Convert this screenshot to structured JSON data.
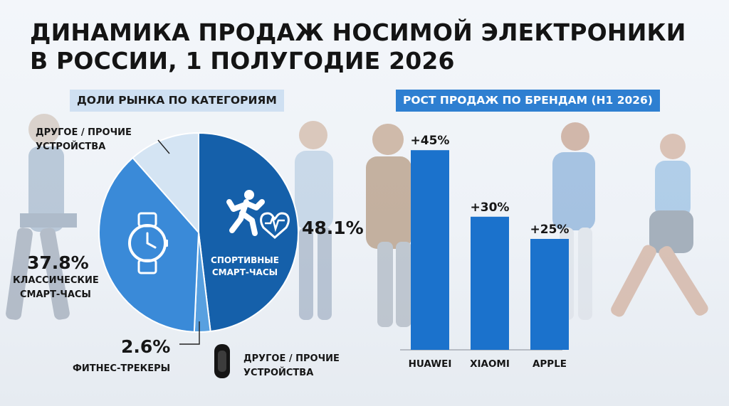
{
  "title": "ДИНАМИКА ПРОДАЖ НОСИМОЙ ЭЛЕКТРОНИКИ В РОССИИ, 1 ПОЛУГОДИЕ 2026",
  "colors": {
    "sport": "#1560aa",
    "classic": "#3a8ad8",
    "fitness": "#58a0e0",
    "other": "#d4e4f3",
    "bar": "#1b72cc"
  },
  "chart_data": [
    {
      "type": "pie",
      "title": "ДОЛИ РЫНКА ПО КАТЕГОРИЯМ",
      "slices": [
        {
          "key": "sport",
          "value": 48.1,
          "value_label": "48.1%",
          "name_lines": [
            "СПОРТИВНЫЕ",
            "СМАРТ-ЧАСЫ"
          ],
          "icon": "running-person-heartbeat-icon"
        },
        {
          "key": "fitness",
          "value": 2.6,
          "value_label": "2.6%",
          "name_lines": [
            "ФИТНЕС-ТРЕКЕРЫ"
          ],
          "icon": "fitness-band-icon"
        },
        {
          "key": "classic",
          "value": 37.8,
          "value_label": "37.8%",
          "name_lines": [
            "КЛАССИЧЕСКИЕ",
            "СМАРТ-ЧАСЫ"
          ],
          "icon": "wristwatch-icon"
        },
        {
          "key": "other",
          "value": 11.5,
          "name_lines": [
            "ДРУГОЕ / ПРОЧИЕ",
            "УСТРОЙСТВА"
          ]
        }
      ],
      "extra_label_lines": [
        "ДРУГОЕ / ПРОЧИЕ",
        "УСТРОЙСТВА"
      ]
    },
    {
      "type": "bar",
      "title": "РОСТ ПРОДАЖ ПО БРЕНДАМ (H1 2026)",
      "categories": [
        "HUAWEI",
        "XIAOMI",
        "APPLE"
      ],
      "values": [
        45,
        30,
        25
      ],
      "value_labels": [
        "+45%",
        "+30%",
        "+25%"
      ],
      "unit": "%",
      "ylim": [
        0,
        50
      ],
      "grid": false
    }
  ]
}
